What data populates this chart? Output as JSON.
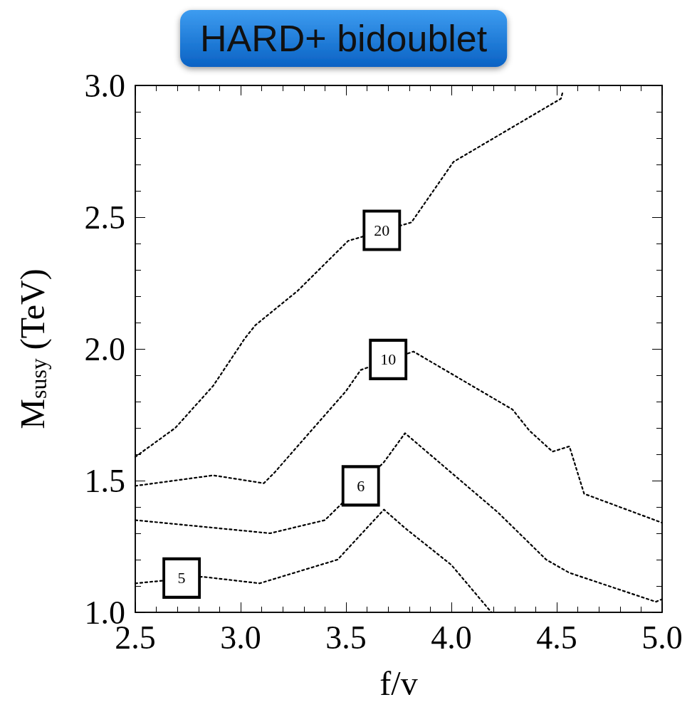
{
  "chart_data": {
    "type": "line",
    "title": "HARD+ bidoublet",
    "xlabel": "f/v",
    "ylabel": "M$_{susy}$ (TeV)",
    "xlim": [
      2.5,
      5.0
    ],
    "xticks": [
      {
        "value": 2.5,
        "label": "2.5"
      },
      {
        "value": 3.0,
        "label": "3.0"
      },
      {
        "value": 3.5,
        "label": "3.5"
      },
      {
        "value": 4.0,
        "label": "4.0"
      },
      {
        "value": 4.5,
        "label": "4.5"
      },
      {
        "value": 5.0,
        "label": "5.0"
      }
    ],
    "ylim": [
      1.0,
      3.0
    ],
    "yticks": [
      {
        "value": 1.0,
        "label": "1.0"
      },
      {
        "value": 1.5,
        "label": "1.5"
      },
      {
        "value": 2.0,
        "label": "2.0"
      },
      {
        "value": 2.5,
        "label": "2.5"
      },
      {
        "value": 3.0,
        "label": "3.0"
      }
    ],
    "marker": "none",
    "line_style": "dotted",
    "series": [
      {
        "color": "#000000",
        "x": [
          2.5,
          2.69,
          2.87,
          3.02,
          3.07,
          3.27,
          3.51,
          3.81,
          4.01,
          4.52,
          4.53
        ],
        "values": [
          1.59,
          1.7,
          1.86,
          2.04,
          2.09,
          2.22,
          2.41,
          2.48,
          2.71,
          2.95,
          2.98
        ]
      },
      {
        "color": "#000000",
        "x": [
          2.5,
          2.87,
          3.11,
          3.16,
          3.5,
          3.57,
          3.82,
          4.29,
          4.37,
          4.48,
          4.56,
          4.63,
          5.0
        ],
        "values": [
          1.48,
          1.52,
          1.49,
          1.53,
          1.84,
          1.92,
          1.99,
          1.77,
          1.69,
          1.61,
          1.63,
          1.45,
          1.34
        ]
      },
      {
        "color": "#000000",
        "x": [
          2.5,
          3.14,
          3.4,
          3.68,
          3.78,
          4.22,
          4.45,
          4.56,
          4.97,
          5.0
        ],
        "values": [
          1.35,
          1.3,
          1.35,
          1.57,
          1.68,
          1.38,
          1.2,
          1.15,
          1.04,
          1.05
        ]
      },
      {
        "color": "#000000",
        "x": [
          2.5,
          2.82,
          3.09,
          3.46,
          3.68,
          3.78,
          4.0,
          4.19
        ],
        "values": [
          1.11,
          1.135,
          1.11,
          1.2,
          1.39,
          1.32,
          1.18,
          1.0
        ]
      }
    ],
    "annotations": [
      {
        "text": "20",
        "x": 3.67,
        "y": 2.45
      },
      {
        "text": "10",
        "x": 3.7,
        "y": 1.96
      },
      {
        "text": "6",
        "x": 3.57,
        "y": 1.48
      },
      {
        "text": "5",
        "x": 2.72,
        "y": 1.13
      }
    ]
  }
}
